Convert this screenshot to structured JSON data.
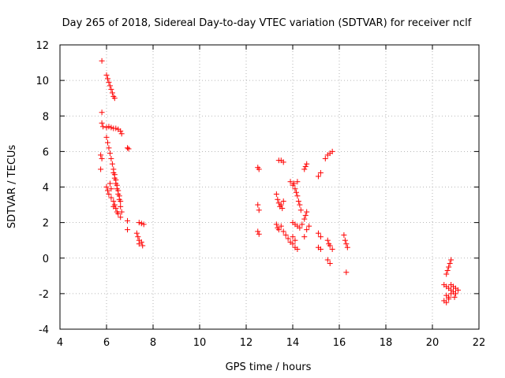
{
  "chart_data": {
    "type": "scatter",
    "title": "Day 265 of 2018, Sidereal Day-to-day VTEC variation (SDTVAR) for receiver nclf",
    "xlabel": "GPS time / hours",
    "ylabel": "SDTVAR / TECUs",
    "xlim": [
      4,
      22
    ],
    "ylim": [
      -4,
      12
    ],
    "xticks": [
      "4",
      "6",
      "8",
      "10",
      "12",
      "14",
      "16",
      "18",
      "20",
      "22"
    ],
    "yticks": [
      "-4",
      "-2",
      "0",
      "2",
      "4",
      "6",
      "8",
      "10",
      "12"
    ],
    "grid": true,
    "marker": "+",
    "marker_color": "#ff0000",
    "series": [
      {
        "name": "SDTVAR",
        "points": [
          [
            5.8,
            11.1
          ],
          [
            6.0,
            10.3
          ],
          [
            6.05,
            10.1
          ],
          [
            6.1,
            9.9
          ],
          [
            6.15,
            9.7
          ],
          [
            6.2,
            9.5
          ],
          [
            6.25,
            9.3
          ],
          [
            6.3,
            9.1
          ],
          [
            6.35,
            9.0
          ],
          [
            5.8,
            8.2
          ],
          [
            5.8,
            7.6
          ],
          [
            5.85,
            7.4
          ],
          [
            6.0,
            7.35
          ],
          [
            6.1,
            7.4
          ],
          [
            6.2,
            7.35
          ],
          [
            6.3,
            7.3
          ],
          [
            6.4,
            7.3
          ],
          [
            6.5,
            7.25
          ],
          [
            6.6,
            7.15
          ],
          [
            6.65,
            7.0
          ],
          [
            6.0,
            6.8
          ],
          [
            6.05,
            6.5
          ],
          [
            6.1,
            6.2
          ],
          [
            6.15,
            5.9
          ],
          [
            6.2,
            5.6
          ],
          [
            6.25,
            5.3
          ],
          [
            6.3,
            5.0
          ],
          [
            6.35,
            4.7
          ],
          [
            6.4,
            4.4
          ],
          [
            6.45,
            4.1
          ],
          [
            6.5,
            3.8
          ],
          [
            6.55,
            3.5
          ],
          [
            6.6,
            3.2
          ],
          [
            6.6,
            2.9
          ],
          [
            6.65,
            2.6
          ],
          [
            6.3,
            4.8
          ],
          [
            6.35,
            4.5
          ],
          [
            6.4,
            4.2
          ],
          [
            6.45,
            3.9
          ],
          [
            6.5,
            3.6
          ],
          [
            6.55,
            3.3
          ],
          [
            6.9,
            6.2
          ],
          [
            6.95,
            6.15
          ],
          [
            5.75,
            5.8
          ],
          [
            5.8,
            5.6
          ],
          [
            5.75,
            5.0
          ],
          [
            6.0,
            4.0
          ],
          [
            6.05,
            3.8
          ],
          [
            6.1,
            3.6
          ],
          [
            6.2,
            3.4
          ],
          [
            6.3,
            3.2
          ],
          [
            6.35,
            3.0
          ],
          [
            6.4,
            2.8
          ],
          [
            6.45,
            2.6
          ],
          [
            6.5,
            2.5
          ],
          [
            6.6,
            2.3
          ],
          [
            6.3,
            2.9
          ],
          [
            6.2,
            3.9
          ],
          [
            6.15,
            4.2
          ],
          [
            7.4,
            2.0
          ],
          [
            7.5,
            1.95
          ],
          [
            7.6,
            1.9
          ],
          [
            6.9,
            2.1
          ],
          [
            6.9,
            1.6
          ],
          [
            7.3,
            1.4
          ],
          [
            7.35,
            1.2
          ],
          [
            7.4,
            1.0
          ],
          [
            7.5,
            0.9
          ],
          [
            7.55,
            0.7
          ],
          [
            7.4,
            0.8
          ],
          [
            12.5,
            5.1
          ],
          [
            12.55,
            5.0
          ],
          [
            12.5,
            3.0
          ],
          [
            12.55,
            2.7
          ],
          [
            12.5,
            1.5
          ],
          [
            12.55,
            1.35
          ],
          [
            13.4,
            5.5
          ],
          [
            13.5,
            5.5
          ],
          [
            13.6,
            5.4
          ],
          [
            13.3,
            3.6
          ],
          [
            13.35,
            3.3
          ],
          [
            13.4,
            3.1
          ],
          [
            13.5,
            3.0
          ],
          [
            13.55,
            2.8
          ],
          [
            13.6,
            3.2
          ],
          [
            13.45,
            2.9
          ],
          [
            13.3,
            1.9
          ],
          [
            13.35,
            1.7
          ],
          [
            13.4,
            1.6
          ],
          [
            13.5,
            1.8
          ],
          [
            13.6,
            1.5
          ],
          [
            13.7,
            1.3
          ],
          [
            13.8,
            1.1
          ],
          [
            13.9,
            0.9
          ],
          [
            14.0,
            0.8
          ],
          [
            14.1,
            0.6
          ],
          [
            14.2,
            0.5
          ],
          [
            13.9,
            4.3
          ],
          [
            14.0,
            4.1
          ],
          [
            14.1,
            3.9
          ],
          [
            14.15,
            3.7
          ],
          [
            14.2,
            3.5
          ],
          [
            14.25,
            3.2
          ],
          [
            14.3,
            3.0
          ],
          [
            14.35,
            2.7
          ],
          [
            14.05,
            4.2
          ],
          [
            14.2,
            4.3
          ],
          [
            14.0,
            2.0
          ],
          [
            14.1,
            1.9
          ],
          [
            14.2,
            1.8
          ],
          [
            14.3,
            1.7
          ],
          [
            14.4,
            1.9
          ],
          [
            14.0,
            1.2
          ],
          [
            14.1,
            1.0
          ],
          [
            14.5,
            5.0
          ],
          [
            14.55,
            5.15
          ],
          [
            14.6,
            5.3
          ],
          [
            14.5,
            2.2
          ],
          [
            14.55,
            2.4
          ],
          [
            14.6,
            2.6
          ],
          [
            14.6,
            1.6
          ],
          [
            14.7,
            1.8
          ],
          [
            14.5,
            1.2
          ],
          [
            15.1,
            4.6
          ],
          [
            15.2,
            4.8
          ],
          [
            15.1,
            1.4
          ],
          [
            15.2,
            1.2
          ],
          [
            15.4,
            5.6
          ],
          [
            15.5,
            5.8
          ],
          [
            15.6,
            5.9
          ],
          [
            15.7,
            6.0
          ],
          [
            15.5,
            1.0
          ],
          [
            15.55,
            0.8
          ],
          [
            15.6,
            0.7
          ],
          [
            15.7,
            0.5
          ],
          [
            15.1,
            0.6
          ],
          [
            15.2,
            0.5
          ],
          [
            15.5,
            -0.1
          ],
          [
            15.6,
            -0.3
          ],
          [
            16.2,
            1.3
          ],
          [
            16.25,
            1.0
          ],
          [
            16.3,
            0.8
          ],
          [
            16.35,
            0.6
          ],
          [
            16.3,
            -0.8
          ],
          [
            20.8,
            -0.1
          ],
          [
            20.75,
            -0.3
          ],
          [
            20.7,
            -0.5
          ],
          [
            20.65,
            -0.7
          ],
          [
            20.6,
            -0.9
          ],
          [
            20.5,
            -1.5
          ],
          [
            20.6,
            -1.6
          ],
          [
            20.7,
            -1.7
          ],
          [
            20.8,
            -1.8
          ],
          [
            20.9,
            -1.9
          ],
          [
            21.0,
            -2.0
          ],
          [
            20.6,
            -2.1
          ],
          [
            20.7,
            -2.2
          ],
          [
            20.8,
            -2.0
          ],
          [
            20.5,
            -2.4
          ],
          [
            20.6,
            -2.5
          ],
          [
            20.7,
            -2.3
          ],
          [
            20.9,
            -1.6
          ],
          [
            21.0,
            -1.7
          ],
          [
            21.1,
            -1.8
          ],
          [
            20.8,
            -1.5
          ],
          [
            20.95,
            -2.2
          ]
        ]
      }
    ]
  }
}
